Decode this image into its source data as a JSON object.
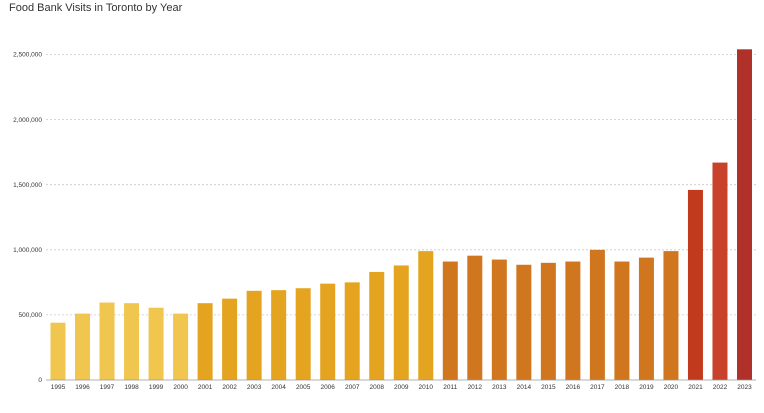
{
  "chart_data": {
    "type": "bar",
    "title": "Food Bank Visits in Toronto by Year",
    "xlabel": "",
    "ylabel": "",
    "ylim": [
      0,
      2600000
    ],
    "yticks": [
      0,
      500000,
      1000000,
      1500000,
      2000000,
      2500000
    ],
    "ytick_labels": [
      "0",
      "500,000",
      "1,000,000",
      "1,500,000",
      "2,000,000",
      "2,500,000"
    ],
    "grid": true,
    "categories": [
      "1995",
      "1996",
      "1997",
      "1998",
      "1999",
      "2000",
      "2001",
      "2002",
      "2003",
      "2004",
      "2005",
      "2006",
      "2007",
      "2008",
      "2009",
      "2010",
      "2011",
      "2012",
      "2013",
      "2014",
      "2015",
      "2016",
      "2017",
      "2018",
      "2019",
      "2020",
      "2021",
      "2022",
      "2023"
    ],
    "values": [
      440000,
      510000,
      595000,
      590000,
      555000,
      510000,
      590000,
      625000,
      685000,
      690000,
      705000,
      740000,
      750000,
      830000,
      880000,
      990000,
      910000,
      955000,
      925000,
      885000,
      900000,
      910000,
      1000000,
      910000,
      940000,
      990000,
      1460000,
      1670000,
      2540000
    ],
    "colors": [
      "#f0c64e",
      "#f0c64e",
      "#f0c64e",
      "#f0c64e",
      "#f0c64e",
      "#f0c64e",
      "#e4a41f",
      "#e4a41f",
      "#e4a41f",
      "#e4a41f",
      "#e4a41f",
      "#e4a41f",
      "#e4a41f",
      "#e4a41f",
      "#e4a41f",
      "#e4a41f",
      "#d0761f",
      "#d0761f",
      "#d0761f",
      "#d0761f",
      "#d0761f",
      "#d0761f",
      "#d0761f",
      "#d0761f",
      "#d0761f",
      "#d0761f",
      "#c23a1e",
      "#c7412b",
      "#b0302a"
    ]
  }
}
